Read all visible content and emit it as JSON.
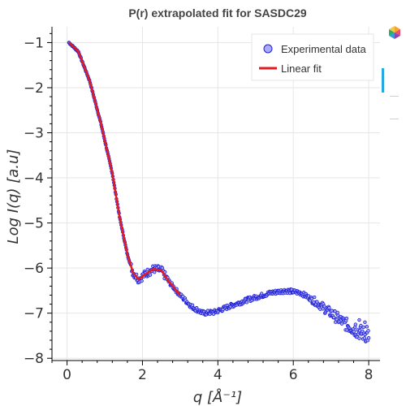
{
  "chart_data": {
    "type": "scatter",
    "title": "P(r) extrapolated fit for SASDC29",
    "xlabel": "q [Å⁻¹]",
    "ylabel": "Log I(q) [a.u]",
    "xlim": [
      -0.4,
      8.3
    ],
    "ylim": [
      -8.05,
      -0.65
    ],
    "x_ticks": [
      0,
      2,
      4,
      6,
      8
    ],
    "x_tick_labels": [
      "0",
      "2",
      "4",
      "6",
      "8"
    ],
    "y_ticks": [
      -1,
      -2,
      -3,
      -4,
      -5,
      -6,
      -7,
      -8
    ],
    "y_tick_labels": [
      "−1",
      "−2",
      "−3",
      "−4",
      "−5",
      "−6",
      "−7",
      "−8"
    ],
    "grid": true,
    "legend_position": "top-right",
    "series": [
      {
        "name": "Experimental data",
        "kind": "scatter",
        "x_range": [
          0.05,
          8.0
        ],
        "key_points": [
          [
            0.05,
            -1.0
          ],
          [
            0.3,
            -1.2
          ],
          [
            0.6,
            -1.85
          ],
          [
            0.9,
            -2.8
          ],
          [
            1.2,
            -3.9
          ],
          [
            1.4,
            -4.9
          ],
          [
            1.6,
            -5.7
          ],
          [
            1.75,
            -6.1
          ],
          [
            1.9,
            -6.25
          ],
          [
            2.1,
            -6.12
          ],
          [
            2.3,
            -6.02
          ],
          [
            2.5,
            -6.05
          ],
          [
            2.7,
            -6.3
          ],
          [
            3.0,
            -6.6
          ],
          [
            3.3,
            -6.85
          ],
          [
            3.6,
            -7.0
          ],
          [
            3.9,
            -6.98
          ],
          [
            4.3,
            -6.85
          ],
          [
            4.8,
            -6.7
          ],
          [
            5.4,
            -6.55
          ],
          [
            5.8,
            -6.5
          ],
          [
            6.2,
            -6.55
          ],
          [
            6.6,
            -6.75
          ],
          [
            7.0,
            -7.0
          ],
          [
            7.4,
            -7.25
          ],
          [
            7.7,
            -7.4
          ],
          [
            8.0,
            -7.5
          ]
        ]
      },
      {
        "name": "Linear fit",
        "kind": "line",
        "x_range": [
          0.05,
          3.0
        ],
        "key_points": [
          [
            0.05,
            -1.0
          ],
          [
            0.3,
            -1.2
          ],
          [
            0.6,
            -1.85
          ],
          [
            0.9,
            -2.8
          ],
          [
            1.2,
            -3.9
          ],
          [
            1.4,
            -4.9
          ],
          [
            1.6,
            -5.7
          ],
          [
            1.75,
            -6.1
          ],
          [
            1.9,
            -6.25
          ],
          [
            2.1,
            -6.12
          ],
          [
            2.3,
            -6.02
          ],
          [
            2.5,
            -6.05
          ],
          [
            2.7,
            -6.3
          ],
          [
            3.0,
            -6.6
          ]
        ]
      }
    ],
    "colors": {
      "scatter_stroke": "#1f1fd6",
      "scatter_fill": "#aaaaff",
      "fit": "#e41a1c"
    }
  },
  "toolbar": {
    "logo_icon": "bokeh-logo-icon"
  }
}
